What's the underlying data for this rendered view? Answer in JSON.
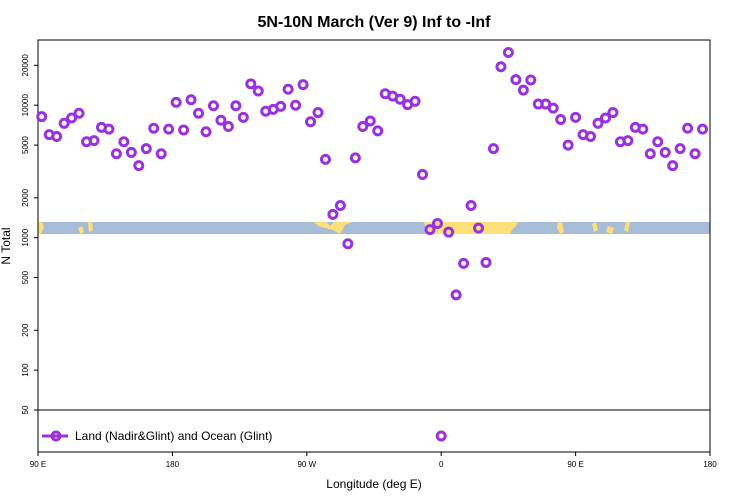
{
  "chart_data": {
    "type": "scatter",
    "title": "5N-10N March (Ver 9)   Inf to -Inf",
    "xlabel": "Longitude (deg E)",
    "ylabel": "N Total",
    "y_scale": "log",
    "ylim": [
      50,
      30000
    ],
    "xlim": [
      0,
      90
    ],
    "x_unit": "bin index (1 bin = 4 deg longitude, from 90E eastward)",
    "x_ticks": [
      {
        "x": 0,
        "label": "90 E"
      },
      {
        "x": 18,
        "label": "180"
      },
      {
        "x": 36,
        "label": "90 W"
      },
      {
        "x": 54,
        "label": "0"
      },
      {
        "x": 72,
        "label": "90 E"
      },
      {
        "x": 90,
        "label": "180"
      }
    ],
    "y_ticks": [
      {
        "v": 50,
        "label": "50"
      },
      {
        "v": 100,
        "label": "100"
      },
      {
        "v": 200,
        "label": "200"
      },
      {
        "v": 500,
        "label": "500"
      },
      {
        "v": 1000,
        "label": "1000"
      },
      {
        "v": 2000,
        "label": "2000"
      },
      {
        "v": 5000,
        "label": "5000"
      },
      {
        "v": 10000,
        "label": "10000"
      },
      {
        "v": 20000,
        "label": "20000"
      }
    ],
    "series": [
      {
        "name": "Land (Nadir&Glint) and Ocean (Glint)",
        "color": "#9b30e0",
        "marker": "open-circle",
        "points": [
          [
            0.5,
            8200
          ],
          [
            1.5,
            6000
          ],
          [
            2.5,
            5800
          ],
          [
            3.5,
            7300
          ],
          [
            4.5,
            8000
          ],
          [
            5.5,
            8700
          ],
          [
            6.5,
            5300
          ],
          [
            7.5,
            5400
          ],
          [
            8.5,
            6800
          ],
          [
            9.5,
            6600
          ],
          [
            10.5,
            4300
          ],
          [
            11.5,
            5300
          ],
          [
            12.5,
            4400
          ],
          [
            13.5,
            3500
          ],
          [
            14.5,
            4700
          ],
          [
            15.5,
            6700
          ],
          [
            16.5,
            4300
          ],
          [
            17.5,
            6600
          ],
          [
            18.5,
            10500
          ],
          [
            19.5,
            6500
          ],
          [
            20.5,
            11000
          ],
          [
            21.5,
            8700
          ],
          [
            22.5,
            6300
          ],
          [
            23.5,
            9900
          ],
          [
            24.5,
            7700
          ],
          [
            25.5,
            6900
          ],
          [
            26.5,
            9900
          ],
          [
            27.5,
            8100
          ],
          [
            28.5,
            14500
          ],
          [
            29.5,
            12800
          ],
          [
            30.5,
            9000
          ],
          [
            31.5,
            9300
          ],
          [
            32.5,
            9800
          ],
          [
            33.5,
            13200
          ],
          [
            34.5,
            10000
          ],
          [
            35.5,
            14300
          ],
          [
            36.5,
            7500
          ],
          [
            37.5,
            8800
          ],
          [
            38.5,
            3900
          ],
          [
            39.5,
            1500
          ],
          [
            40.5,
            1750
          ],
          [
            41.5,
            900
          ],
          [
            42.5,
            4000
          ],
          [
            43.5,
            6900
          ],
          [
            44.5,
            7600
          ],
          [
            45.5,
            6400
          ],
          [
            46.5,
            12200
          ],
          [
            47.5,
            11700
          ],
          [
            48.5,
            11100
          ],
          [
            49.5,
            10100
          ],
          [
            50.5,
            10700
          ],
          [
            51.5,
            3000
          ],
          [
            52.5,
            1150
          ],
          [
            53.5,
            1280
          ],
          [
            55.0,
            1100
          ],
          [
            56.0,
            370
          ],
          [
            57.0,
            640
          ],
          [
            58.0,
            1750
          ],
          [
            59.0,
            1180
          ],
          [
            60.0,
            650
          ],
          [
            61.0,
            4700
          ],
          [
            62.0,
            19500
          ],
          [
            63.0,
            25000
          ],
          [
            64.0,
            15600
          ],
          [
            65.0,
            13000
          ],
          [
            66.0,
            15500
          ],
          [
            67.0,
            10200
          ],
          [
            68.0,
            10200
          ],
          [
            69.0,
            9500
          ],
          [
            70.0,
            7800
          ],
          [
            71.0,
            5000
          ],
          [
            72.0,
            8100
          ],
          [
            73.0,
            6000
          ],
          [
            74.0,
            5800
          ],
          [
            75.0,
            7300
          ],
          [
            76.0,
            8000
          ],
          [
            77.0,
            8800
          ],
          [
            78.0,
            5300
          ],
          [
            79.0,
            5400
          ],
          [
            80.0,
            6800
          ],
          [
            81.0,
            6600
          ],
          [
            82.0,
            4300
          ],
          [
            83.0,
            5300
          ],
          [
            84.0,
            4400
          ],
          [
            85.0,
            3500
          ],
          [
            86.0,
            4700
          ],
          [
            87.0,
            6700
          ],
          [
            88.0,
            4300
          ],
          [
            89.0,
            6600
          ]
        ],
        "legend_row_point": [
          54.0
        ]
      }
    ],
    "legend": {
      "position": "bottom-left",
      "label": "Land (Nadir&Glint) and Ocean (Glint)"
    },
    "colors": {
      "ocean": "#a7bcd7",
      "land": "#fde07a",
      "marker": "#9b30e0",
      "axis": "#000000"
    }
  }
}
